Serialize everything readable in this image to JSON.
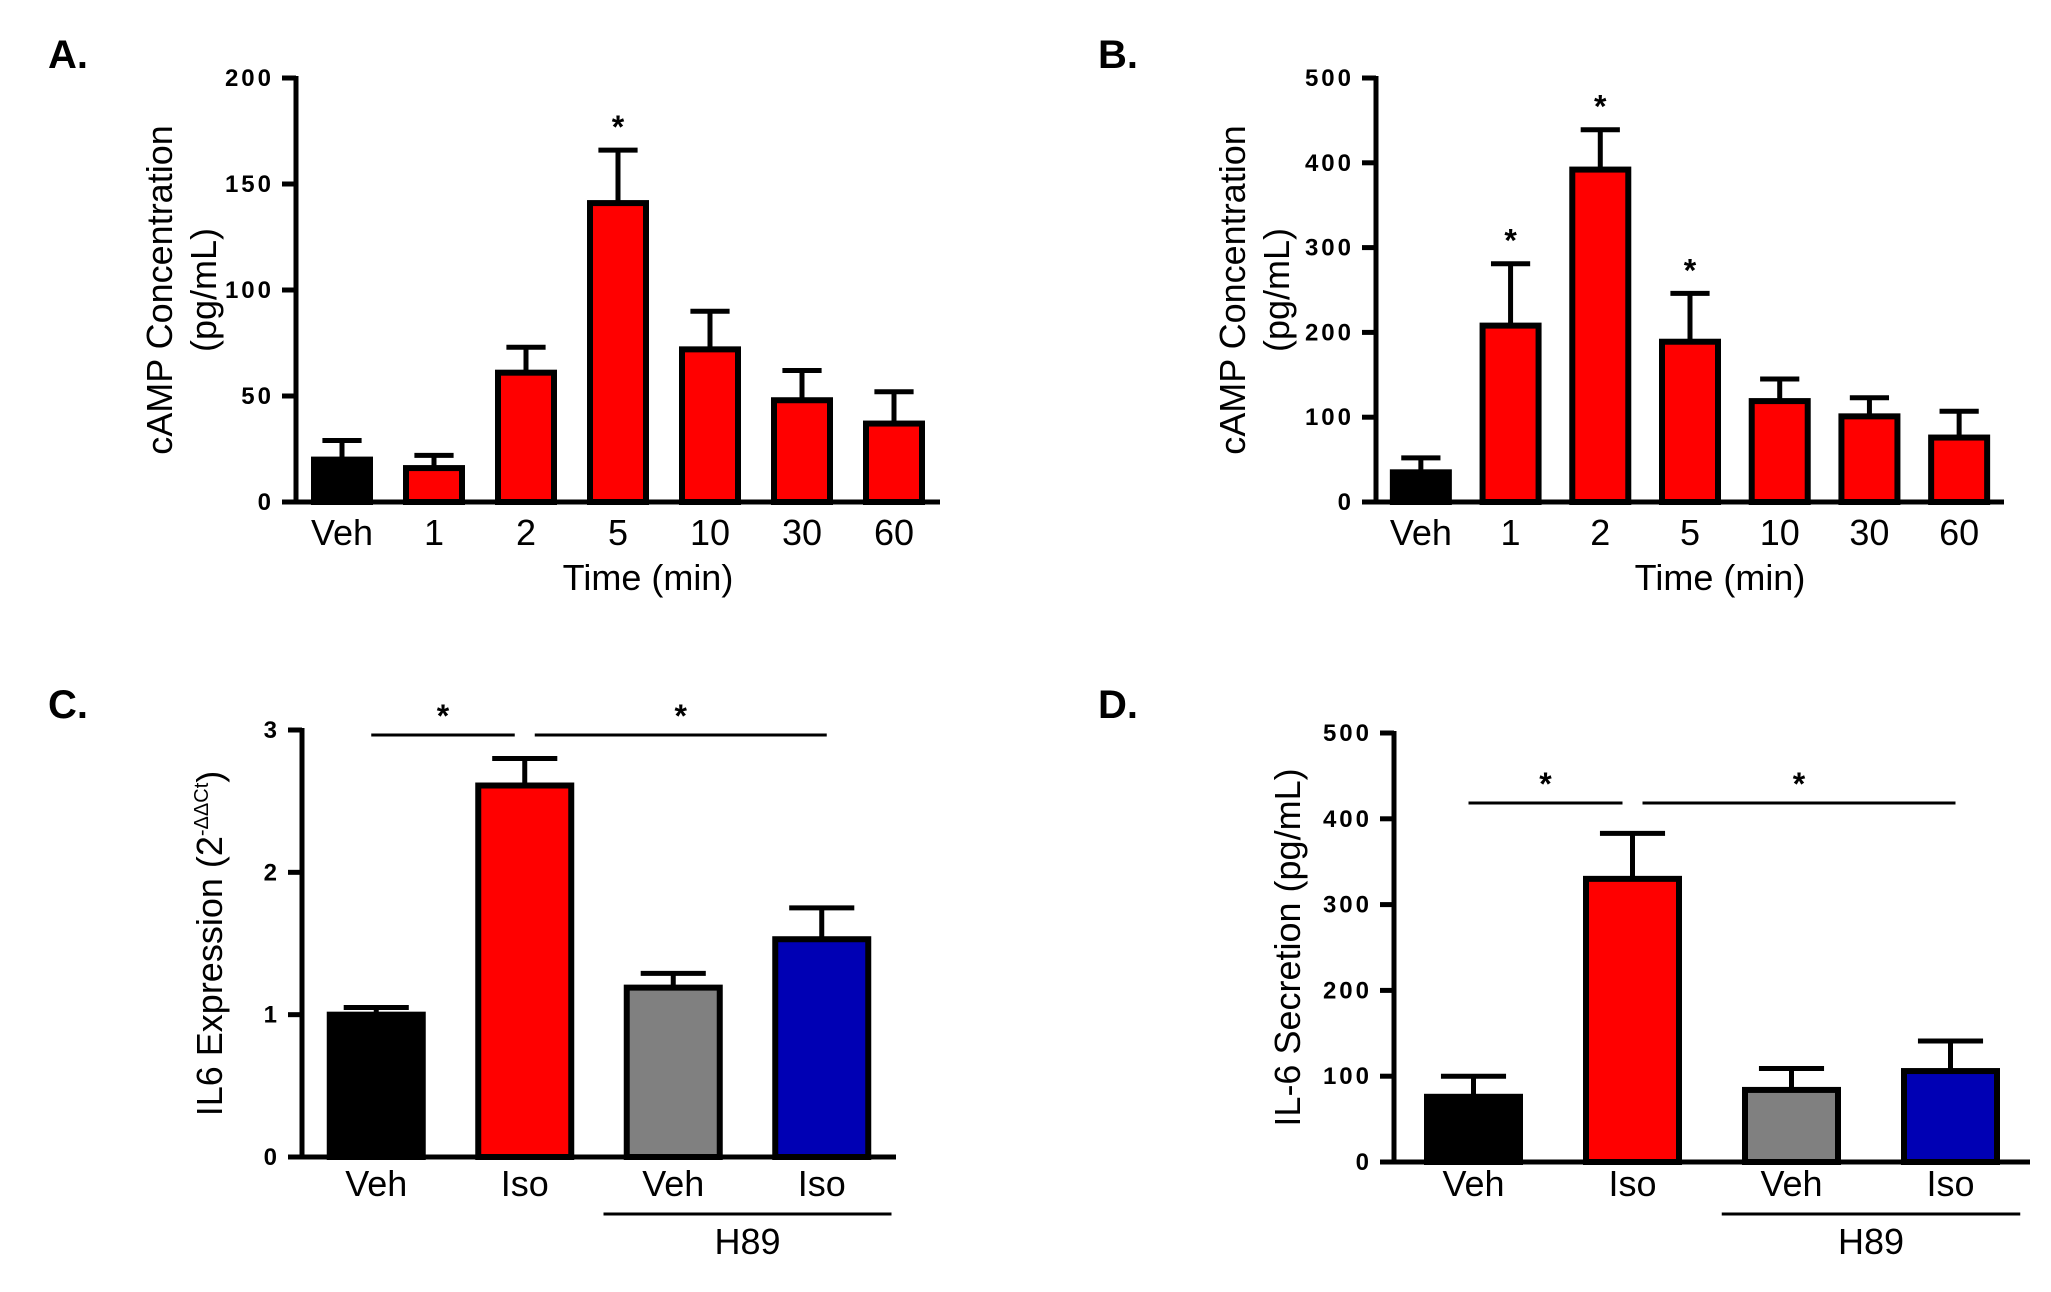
{
  "chart_data": [
    {
      "id": "A",
      "panel_label": "A.",
      "type": "bar",
      "categories": [
        "Veh",
        "1",
        "2",
        "5",
        "10",
        "30",
        "60"
      ],
      "values": [
        20,
        16,
        61,
        141,
        72,
        48,
        37
      ],
      "errors": [
        9,
        6,
        12,
        25,
        18,
        14,
        15
      ],
      "colors": [
        "#000000",
        "#ff0000",
        "#ff0000",
        "#ff0000",
        "#ff0000",
        "#ff0000",
        "#ff0000"
      ],
      "significance": [
        false,
        false,
        false,
        true,
        false,
        false,
        false
      ],
      "ylabel_line1": "cAMP Concentration",
      "ylabel_line2": "(pg/mL)",
      "xlabel": "Time (min)",
      "ylim": [
        0,
        200
      ],
      "yticks": [
        0,
        50,
        100,
        150,
        200
      ],
      "ytick_labels": [
        "0",
        "50",
        "100",
        "150",
        "200"
      ]
    },
    {
      "id": "B",
      "panel_label": "B.",
      "type": "bar",
      "categories": [
        "Veh",
        "1",
        "2",
        "5",
        "10",
        "30",
        "60"
      ],
      "values": [
        35,
        208,
        392,
        189,
        119,
        101,
        76
      ],
      "errors": [
        17,
        73,
        47,
        57,
        26,
        22,
        31
      ],
      "colors": [
        "#000000",
        "#ff0000",
        "#ff0000",
        "#ff0000",
        "#ff0000",
        "#ff0000",
        "#ff0000"
      ],
      "significance": [
        false,
        true,
        true,
        true,
        false,
        false,
        false
      ],
      "ylabel_line1": "cAMP Concentration",
      "ylabel_line2": "(pg/mL)",
      "xlabel": "Time (min)",
      "ylim": [
        0,
        500
      ],
      "yticks": [
        0,
        100,
        200,
        300,
        400,
        500
      ],
      "ytick_labels": [
        "0",
        "100",
        "200",
        "300",
        "400",
        "500"
      ]
    },
    {
      "id": "C",
      "panel_label": "C.",
      "type": "bar",
      "categories": [
        "Veh",
        "Iso",
        "Veh",
        "Iso"
      ],
      "values": [
        1.0,
        2.61,
        1.19,
        1.53
      ],
      "errors": [
        0.05,
        0.19,
        0.1,
        0.22
      ],
      "colors": [
        "#000000",
        "#ff0000",
        "#808080",
        "#0000b4"
      ],
      "ylabel": "IL6 Expression (2",
      "ylabel_sup": "-ΔΔCt",
      "ylabel_close": ")",
      "group_label": "H89",
      "ylim": [
        0,
        3
      ],
      "yticks": [
        0,
        1,
        2,
        3
      ],
      "ytick_labels": [
        "0",
        "1",
        "2",
        "3"
      ],
      "sig_pairs": [
        {
          "from": 0,
          "to": 1,
          "label": "*"
        },
        {
          "from": 1,
          "to": 3,
          "label": "*"
        }
      ]
    },
    {
      "id": "D",
      "panel_label": "D.",
      "type": "bar",
      "categories": [
        "Veh",
        "Iso",
        "Veh",
        "Iso"
      ],
      "values": [
        76,
        330,
        84,
        106
      ],
      "errors": [
        24,
        53,
        25,
        35
      ],
      "colors": [
        "#000000",
        "#ff0000",
        "#808080",
        "#0000b4"
      ],
      "ylabel": "IL-6 Secretion (pg/mL)",
      "group_label": "H89",
      "ylim": [
        0,
        500
      ],
      "yticks": [
        0,
        100,
        200,
        300,
        400,
        500
      ],
      "ytick_labels": [
        "0",
        "100",
        "200",
        "300",
        "400",
        "500"
      ],
      "sig_pairs": [
        {
          "from": 0,
          "to": 1,
          "label": "*"
        },
        {
          "from": 1,
          "to": 3,
          "label": "*"
        }
      ]
    }
  ],
  "significance_marker": "*"
}
